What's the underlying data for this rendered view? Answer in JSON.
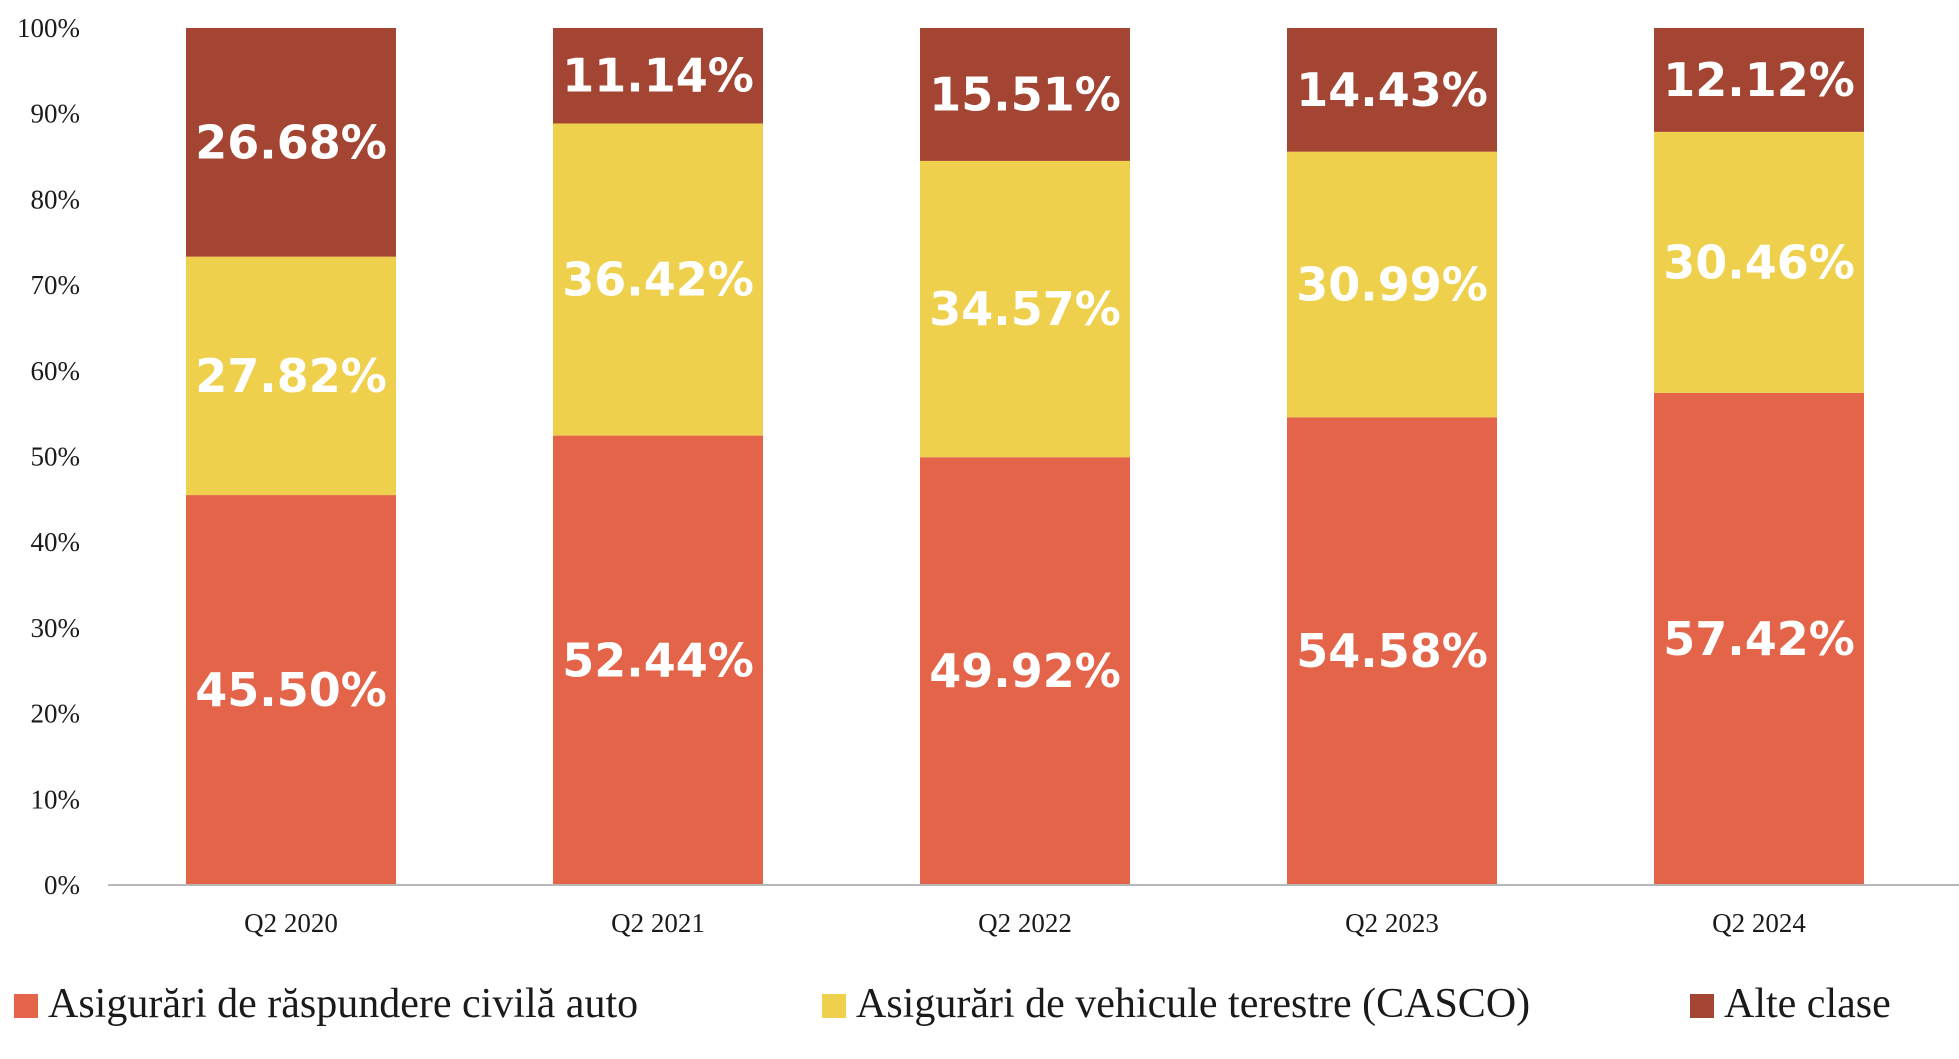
{
  "chart_data": {
    "type": "bar",
    "stacked": true,
    "categories": [
      "Q2 2020",
      "Q2 2021",
      "Q2 2022",
      "Q2 2023",
      "Q2 2024"
    ],
    "series": [
      {
        "name": "Asigurări de răspundere civilă auto",
        "color": "#E4644A",
        "values": [
          45.5,
          52.44,
          49.92,
          54.58,
          57.42
        ],
        "labels": [
          "45.50%",
          "52.44%",
          "49.92%",
          "54.58%",
          "57.42%"
        ]
      },
      {
        "name": "Asigurări de vehicule terestre (CASCO)",
        "color": "#EED04D",
        "values": [
          27.82,
          36.42,
          34.57,
          30.99,
          30.46
        ],
        "labels": [
          "27.82%",
          "36.42%",
          "34.57%",
          "30.99%",
          "30.46%"
        ]
      },
      {
        "name": "Alte clase",
        "color": "#A44432",
        "values": [
          26.68,
          11.14,
          15.51,
          14.43,
          12.12
        ],
        "labels": [
          "26.68%",
          "11.14%",
          "15.51%",
          "14.43%",
          "12.12%"
        ]
      }
    ],
    "yticks": [
      "0%",
      "10%",
      "20%",
      "30%",
      "40%",
      "50%",
      "60%",
      "70%",
      "80%",
      "90%",
      "100%"
    ],
    "ylim": [
      0,
      100
    ],
    "grid": false,
    "legend": "bottom",
    "title": "",
    "xlabel": "",
    "ylabel": ""
  }
}
